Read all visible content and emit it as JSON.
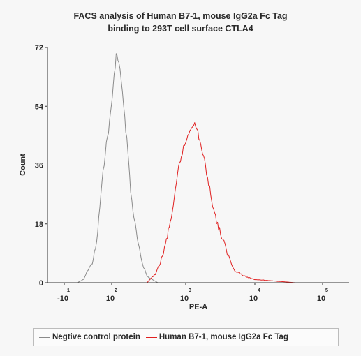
{
  "chart_data": {
    "type": "line",
    "title_line1": "FACS analysis of Human B7-1, mouse IgG2a Fc Tag",
    "title_line2": "binding to 293T cell surface CTLA4",
    "xlabel": "PE-A",
    "ylabel": "Count",
    "x_scale": "biexponential",
    "xlim": [
      -20,
      400000
    ],
    "ylim": [
      0,
      72
    ],
    "y_ticks": [
      0,
      18,
      36,
      54,
      72
    ],
    "x_tick_labels": [
      {
        "base": "-10",
        "exp": "1",
        "value": -10
      },
      {
        "base": "10",
        "exp": "2",
        "value": 100
      },
      {
        "base": "10",
        "exp": "3",
        "value": 1000
      },
      {
        "base": "10",
        "exp": "4",
        "value": 10000
      },
      {
        "base": "10",
        "exp": "5",
        "value": 100000
      }
    ],
    "grid": false,
    "legend_position": "bottom",
    "series": [
      {
        "name": "Negtive control protein",
        "color": "#8a8a8a",
        "x": [
          20,
          35,
          45,
          55,
          65,
          75,
          85,
          95,
          105,
          115,
          125,
          135,
          150,
          165,
          180,
          200,
          230,
          260,
          300,
          350,
          420
        ],
        "y": [
          0,
          1,
          4,
          6,
          12,
          27,
          40,
          49,
          60,
          70,
          67,
          62,
          50,
          41,
          28,
          20,
          11,
          6,
          2,
          1,
          0
        ]
      },
      {
        "name": "Human B7-1, mouse IgG2a Fc Tag",
        "color": "#e02020",
        "x": [
          300,
          400,
          500,
          600,
          700,
          800,
          900,
          1000,
          1150,
          1300,
          1500,
          1700,
          2000,
          2300,
          2700,
          3200,
          4000,
          5000,
          7000,
          10000,
          20000,
          40000
        ],
        "y": [
          0,
          3,
          9,
          17,
          25,
          35,
          40,
          43,
          47,
          49,
          46,
          41,
          34,
          27,
          20,
          15,
          9,
          4,
          2,
          1,
          0.5,
          0
        ]
      }
    ]
  }
}
